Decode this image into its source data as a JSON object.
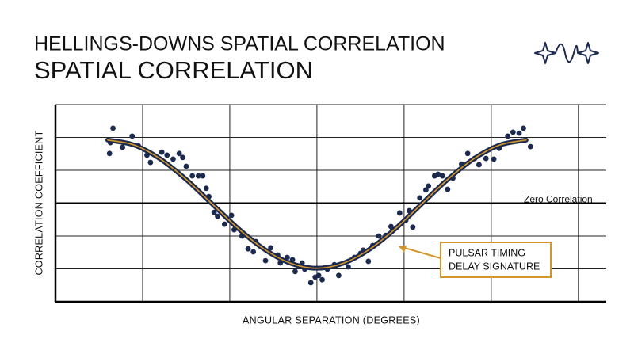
{
  "chart_data": {
    "type": "scatter",
    "title": "HELLINGS-DOWNS SPATIAL CORRELATION",
    "subtitle": "SPATIAL CORRELATION",
    "x_label": "ANGULAR SEPARATION (DEGREES)",
    "y_label": "CORRELATION COEFFICIENT",
    "xlim": [
      0,
      6.32
    ],
    "ylim": [
      -3,
      3
    ],
    "xticks": [
      0,
      1,
      2,
      3,
      4,
      5,
      6
    ],
    "yticks": [
      -3,
      -2,
      -1,
      0,
      1,
      2,
      3
    ],
    "grid": true,
    "zero_line": true,
    "zero_line_label": "Zero Correlation",
    "annotation": [
      "PULSAR TIMING",
      "DELAY SIGNATURE"
    ],
    "annotation_color": "#d4962a",
    "points": {
      "color": "#1b2a4e",
      "x": [
        0.62,
        0.66,
        0.63,
        0.77,
        0.88,
        0.95,
        1.05,
        1.09,
        1.22,
        1.28,
        1.35,
        1.42,
        1.46,
        1.5,
        1.57,
        1.64,
        1.69,
        1.73,
        1.76,
        1.82,
        1.86,
        1.94,
        2.02,
        2.05,
        2.14,
        2.21,
        2.27,
        2.3,
        2.41,
        2.47,
        2.55,
        2.58,
        2.66,
        2.72,
        2.75,
        2.83,
        2.86,
        2.93,
        2.98,
        3.02,
        3.06,
        3.12,
        3.2,
        3.25,
        3.36,
        3.43,
        3.5,
        3.53,
        3.59,
        3.64,
        3.71,
        3.79,
        3.85,
        3.87,
        3.95,
        4.02,
        4.06,
        4.1,
        4.18,
        4.25,
        4.28,
        4.35,
        4.39,
        4.44,
        4.5,
        4.56,
        4.66,
        4.73,
        4.81,
        4.86,
        4.94,
        5.03,
        5.09,
        5.19,
        5.25,
        5.32,
        5.37,
        5.45
      ],
      "values": [
        1.51,
        2.28,
        1.84,
        1.7,
        2.04,
        1.75,
        1.46,
        1.24,
        1.55,
        1.46,
        1.34,
        1.51,
        1.39,
        1.12,
        0.83,
        0.83,
        0.83,
        0.45,
        0.2,
        -0.28,
        -0.4,
        -0.64,
        -0.37,
        -0.81,
        -1.0,
        -1.39,
        -1.48,
        -1.17,
        -1.75,
        -1.36,
        -1.58,
        -1.82,
        -1.65,
        -1.72,
        -2.08,
        -1.82,
        -2.01,
        -2.42,
        -2.25,
        -2.2,
        -2.33,
        -2.01,
        -1.87,
        -2.2,
        -1.94,
        -1.65,
        -1.53,
        -1.43,
        -1.77,
        -1.29,
        -1.0,
        -0.98,
        -0.71,
        -0.81,
        -0.3,
        -0.52,
        -0.23,
        -0.73,
        0.16,
        0.4,
        0.52,
        0.83,
        0.88,
        0.83,
        0.42,
        0.76,
        1.19,
        1.51,
        1.36,
        1.17,
        1.36,
        1.34,
        1.67,
        2.04,
        2.16,
        2.13,
        2.28,
        1.72
      ]
    },
    "curve": {
      "color": "#1b2a4e",
      "inner_color": "#d4962a",
      "x": [
        0.6,
        0.9,
        1.2,
        1.5,
        1.8,
        2.1,
        2.4,
        2.7,
        3.0,
        3.3,
        3.6,
        3.9,
        4.2,
        4.5,
        4.8,
        5.1,
        5.4
      ],
      "values": [
        1.92,
        1.77,
        1.35,
        0.72,
        -0.03,
        -0.78,
        -1.41,
        -1.83,
        -1.98,
        -1.83,
        -1.41,
        -0.78,
        -0.03,
        0.72,
        1.35,
        1.77,
        1.92
      ]
    }
  }
}
